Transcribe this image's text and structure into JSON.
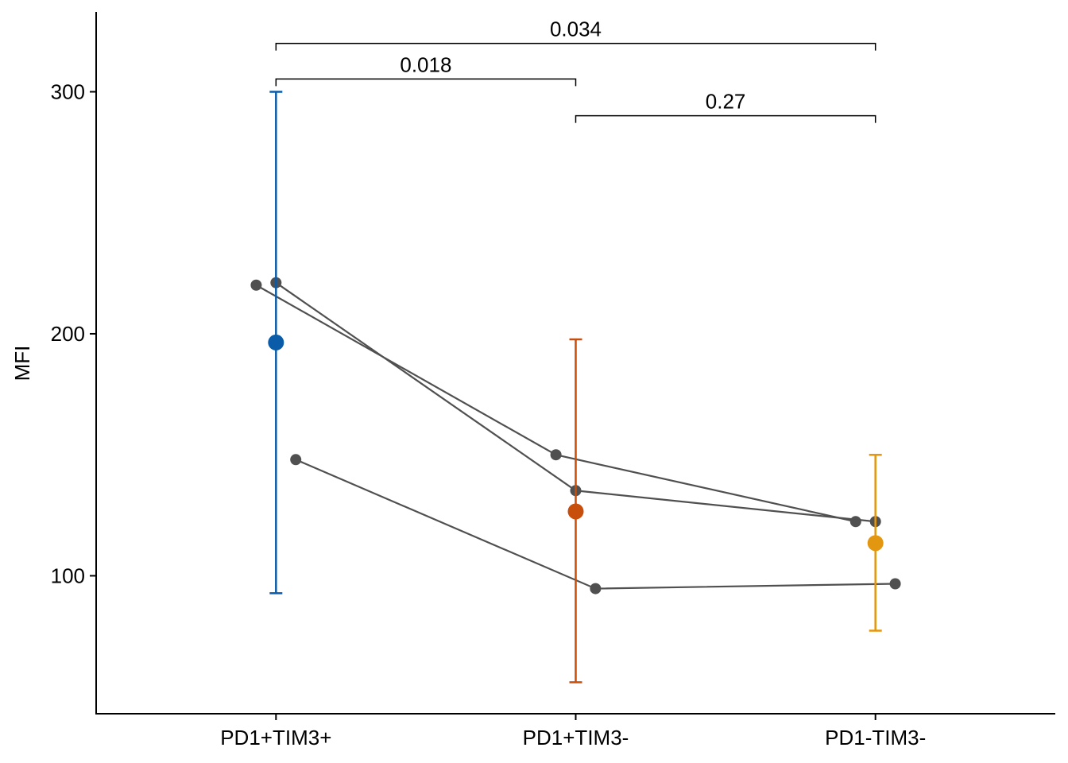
{
  "chart_data": {
    "type": "scatter",
    "title": "",
    "xlabel": "",
    "ylabel": "MFI",
    "categories": [
      "PD1+TIM3+",
      "PD1+TIM3-",
      "PD1-TIM3-"
    ],
    "xlim": [
      0.4,
      3.6
    ],
    "ylim": [
      43,
      333
    ],
    "yticks": [
      100,
      200,
      300
    ],
    "grid": false,
    "summary": [
      {
        "category": "PD1+TIM3+",
        "mean": 196.4,
        "lower": 92.8,
        "upper": 300.0,
        "color": "#0a5ca8"
      },
      {
        "category": "PD1+TIM3-",
        "mean": 126.6,
        "lower": 56.0,
        "upper": 197.7,
        "color": "#c84e0c"
      },
      {
        "category": "PD1-TIM3-",
        "mean": 113.5,
        "lower": 77.3,
        "upper": 150.0,
        "color": "#e3960f"
      }
    ],
    "subjects": [
      {
        "x": [
          0.934,
          1.934,
          2.934
        ],
        "y": [
          220.1,
          150.0,
          122.4
        ]
      },
      {
        "x": [
          1.0,
          2.0,
          3.0
        ],
        "y": [
          221.1,
          135.2,
          122.4
        ]
      },
      {
        "x": [
          1.066,
          2.066,
          3.066
        ],
        "y": [
          148.0,
          94.7,
          96.7
        ]
      }
    ],
    "point_color": "#505050",
    "comparisons": [
      {
        "from": 1,
        "to": 3,
        "y": 320,
        "label": "0.034"
      },
      {
        "from": 1,
        "to": 2,
        "y": 305.3,
        "label": "0.018"
      },
      {
        "from": 2,
        "to": 3,
        "y": 290.1,
        "label": "0.27"
      }
    ]
  }
}
